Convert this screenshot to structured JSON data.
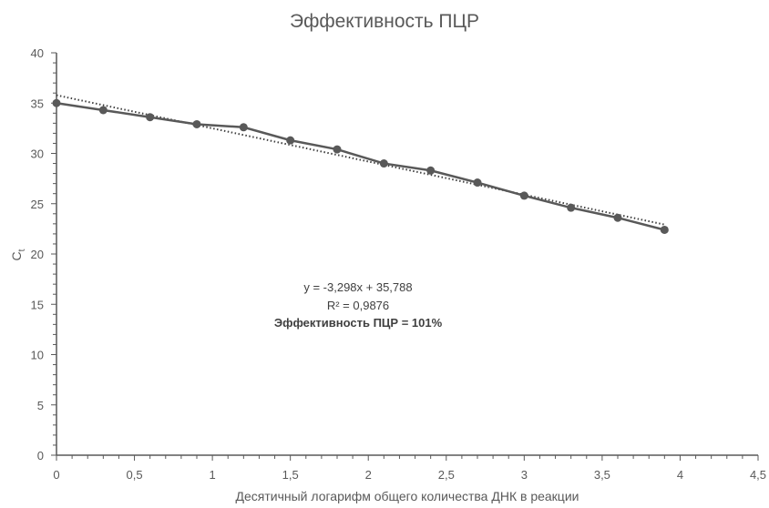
{
  "chart_data": {
    "type": "line",
    "title": "Эффективность ПЦР",
    "xlabel": "Десятичный логарифм общего количества ДНК в реакции",
    "ylabel": "C",
    "ylabel_sub": "t",
    "xlim": [
      0,
      4.5
    ],
    "ylim": [
      0,
      40
    ],
    "x_ticks": [
      "0",
      "0,5",
      "1",
      "1,5",
      "2",
      "2,5",
      "3",
      "3,5",
      "4",
      "4,5"
    ],
    "y_ticks": [
      "0",
      "5",
      "10",
      "15",
      "20",
      "25",
      "30",
      "35",
      "40"
    ],
    "grid": false,
    "x": [
      0,
      0.3,
      0.6,
      0.9,
      1.2,
      1.5,
      1.8,
      2.1,
      2.4,
      2.7,
      3.0,
      3.3,
      3.6,
      3.9
    ],
    "series": [
      {
        "values": [
          35.0,
          34.3,
          33.6,
          32.9,
          32.6,
          31.3,
          30.4,
          29.0,
          28.3,
          27.1,
          25.8,
          24.6,
          23.6,
          22.4
        ],
        "color": "#595959"
      }
    ],
    "trendline": {
      "type": "linear",
      "style": "dotted",
      "color": "#404040",
      "slope": -3.298,
      "intercept": 35.788,
      "x_range": [
        0,
        3.9
      ]
    },
    "annotations": {
      "equation": "y = -3,298x + 35,788",
      "r2": "R² = 0,9876",
      "efficiency": "Эффективность ПЦР = 101%"
    }
  }
}
